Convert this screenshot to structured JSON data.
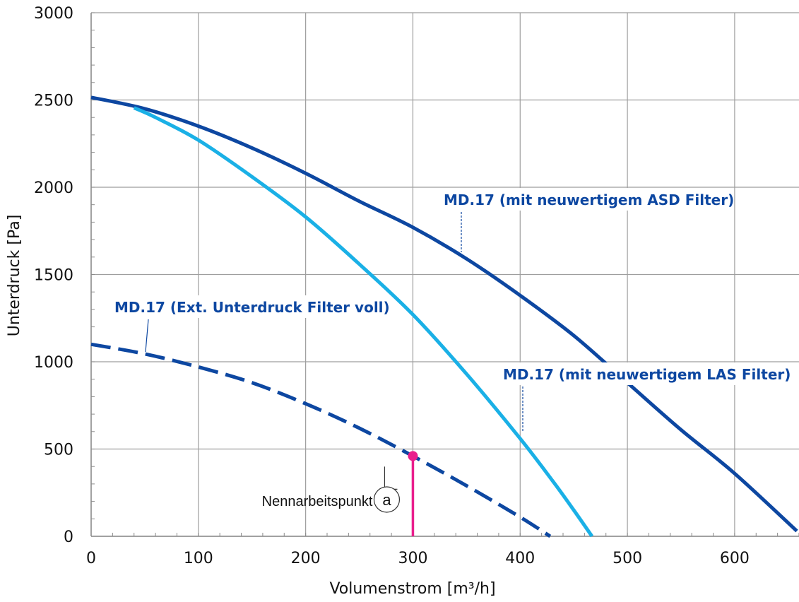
{
  "chart_data": {
    "type": "line",
    "xlabel": "Volumenstrom [m³/h]",
    "ylabel": "Unterdruck [Pa]",
    "xlim": [
      0,
      660
    ],
    "ylim": [
      0,
      3000
    ],
    "x_ticks": [
      0,
      100,
      200,
      300,
      400,
      500,
      600
    ],
    "y_ticks": [
      0,
      500,
      1000,
      1500,
      2000,
      2500,
      3000
    ],
    "grid": true,
    "series": [
      {
        "name": "MD.17 (mit neuwertigem ASD Filter)",
        "color": "#0d47a1",
        "style": "solid",
        "x": [
          0,
          50,
          100,
          150,
          200,
          250,
          300,
          350,
          400,
          450,
          500,
          550,
          600,
          658
        ],
        "y": [
          2515,
          2450,
          2350,
          2225,
          2080,
          1920,
          1770,
          1590,
          1380,
          1150,
          880,
          610,
          360,
          30
        ]
      },
      {
        "name": "MD.17 (mit neuwertigem LAS Filter)",
        "color": "#1ab0e6",
        "style": "solid",
        "x": [
          40,
          60,
          100,
          150,
          200,
          250,
          300,
          350,
          400,
          430,
          450,
          467
        ],
        "y": [
          2455,
          2400,
          2270,
          2060,
          1830,
          1560,
          1270,
          930,
          560,
          320,
          150,
          0
        ]
      },
      {
        "name": "MD.17 (Ext. Unterdruck Filter voll)",
        "color": "#0d47a1",
        "style": "dashed",
        "x": [
          0,
          50,
          100,
          150,
          200,
          250,
          300,
          350,
          400,
          428
        ],
        "y": [
          1100,
          1045,
          970,
          880,
          760,
          620,
          460,
          290,
          110,
          0
        ]
      }
    ],
    "annotations": [
      {
        "text": "MD.17 (mit neuwertigem ASD Filter)",
        "color": "#0d47a1",
        "target_series": 0
      },
      {
        "text": "MD.17 (mit neuwertigem LAS Filter)",
        "color": "#0d47a1",
        "target_series": 1
      },
      {
        "text": "MD.17 (Ext. Unterdruck Filter voll)",
        "color": "#0d47a1",
        "target_series": 2
      }
    ],
    "operating_point": {
      "label": "Nennarbeitspunkt",
      "marker": "a",
      "x": 300,
      "y": 460,
      "color": "#e91e8c"
    }
  }
}
